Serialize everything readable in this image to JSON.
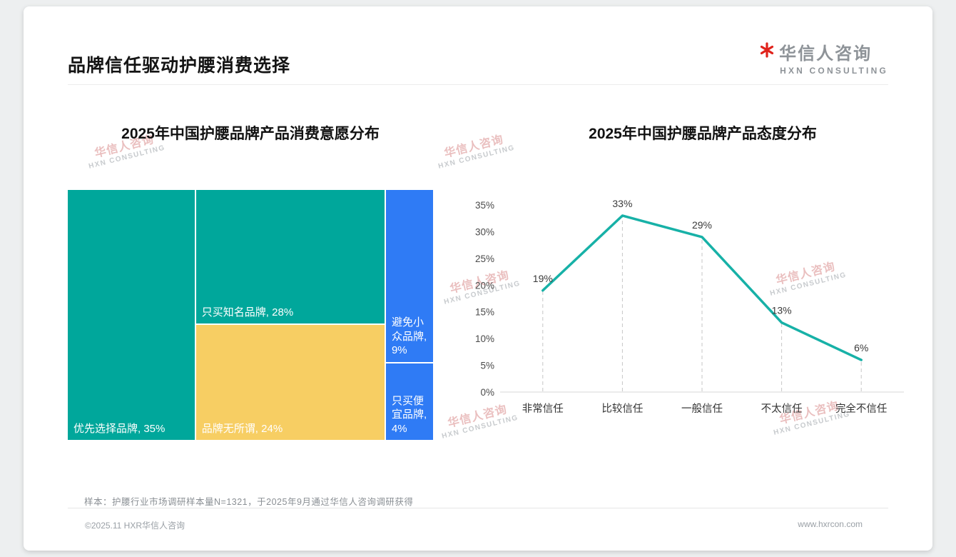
{
  "header": {
    "title": "品牌信任驱动护腰消费选择",
    "logo": {
      "cn": "华信人咨询",
      "en": "HXN CONSULTING",
      "accent_color": "#e0231c",
      "text_color": "#8e9398"
    }
  },
  "watermark": {
    "cn": "华信人咨询",
    "en": "HXN CONSULTING"
  },
  "chart_data": [
    {
      "type": "treemap",
      "title": "2025年中国护腰品牌产品消费意愿分布",
      "unit": "%",
      "items": [
        {
          "label": "优先选择品牌",
          "value": 35,
          "color": "#00a79b",
          "column": 0
        },
        {
          "label": "只买知名品牌",
          "value": 28,
          "color": "#00a79b",
          "column": 1
        },
        {
          "label": "品牌无所谓",
          "value": 24,
          "color": "#f7ce63",
          "column": 1
        },
        {
          "label": "避免小众品牌",
          "value": 9,
          "color": "#2f7bf5",
          "column": 2
        },
        {
          "label": "只买便宜品牌",
          "value": 4,
          "color": "#2f7bf5",
          "column": 2
        }
      ]
    },
    {
      "type": "line",
      "title": "2025年中国护腰品牌产品态度分布",
      "categories": [
        "非常信任",
        "比较信任",
        "一般信任",
        "不太信任",
        "完全不信任"
      ],
      "values": [
        19,
        33,
        29,
        13,
        6
      ],
      "unit": "%",
      "ylim": [
        0,
        35
      ],
      "ytick_step": 5,
      "line_color": "#17b1a7",
      "grid": "dashed vertical drop lines to axis",
      "legend": "none"
    }
  ],
  "footnote": "样本：护腰行业市场调研样本量N=1321，于2025年9月通过华信人咨询调研获得",
  "footer": {
    "copyright": "©2025.11 HXR华信人咨询",
    "website": "www.hxrcon.com"
  }
}
